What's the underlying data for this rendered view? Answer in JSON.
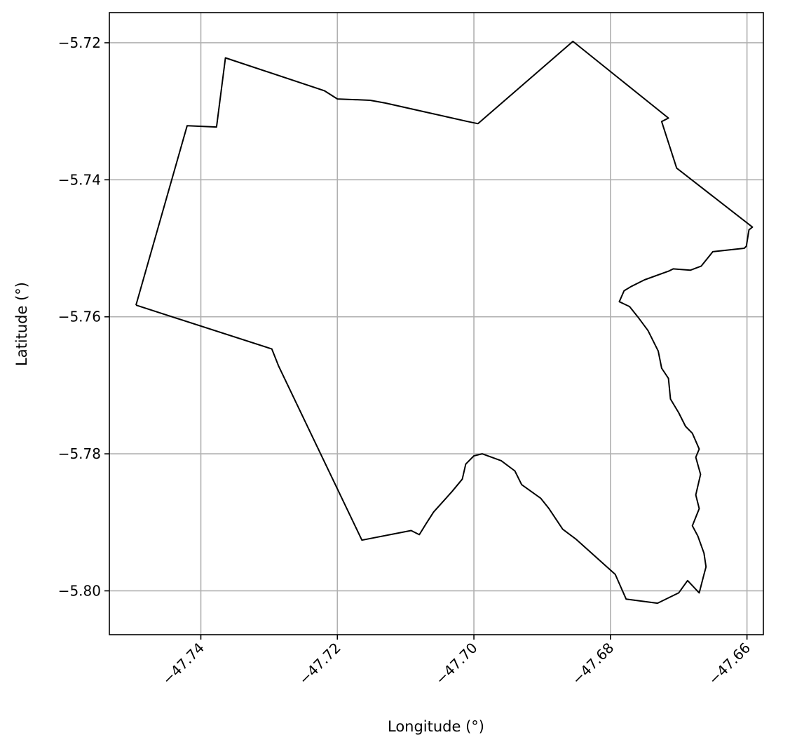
{
  "chart_data": {
    "type": "line",
    "title": "",
    "xlabel": "Longitude (°)",
    "ylabel": "Latitude (°)",
    "xlim": [
      -47.7534,
      -47.6576
    ],
    "ylim": [
      -5.8064,
      -5.7156
    ],
    "xticks": [
      -47.74,
      -47.72,
      -47.7,
      -47.68,
      -47.66
    ],
    "yticks": [
      -5.72,
      -5.74,
      -5.76,
      -5.78,
      -5.8
    ],
    "xtick_labels": [
      "−47.74",
      "−47.72",
      "−47.70",
      "−47.68",
      "−47.66"
    ],
    "ytick_labels": [
      "−5.72",
      "−5.74",
      "−5.76",
      "−5.78",
      "−5.80"
    ],
    "grid": true,
    "series": [
      {
        "color": "#000000",
        "x": [
          -47.7495,
          -47.742,
          -47.7377,
          -47.7364,
          -47.7219,
          -47.72,
          -47.7152,
          -47.713,
          -47.7067,
          -47.7009,
          -47.6994,
          -47.6855,
          -47.6715,
          -47.6725,
          -47.6703,
          -47.6592,
          -47.6597,
          -47.6601,
          -47.6604,
          -47.665,
          -47.6667,
          -47.6683,
          -47.6708,
          -47.6714,
          -47.675,
          -47.677,
          -47.678,
          -47.6787,
          -47.6772,
          -47.676,
          -47.6745,
          -47.673,
          -47.6725,
          -47.6715,
          -47.6712,
          -47.67,
          -47.669,
          -47.668,
          -47.667,
          -47.6675,
          -47.6668,
          -47.6675,
          -47.667,
          -47.668,
          -47.6672,
          -47.6663,
          -47.666,
          -47.6664,
          -47.667,
          -47.6687,
          -47.67,
          -47.6731,
          -47.6777,
          -47.6793,
          -47.685,
          -47.687,
          -47.689,
          -47.6902,
          -47.693,
          -47.694,
          -47.696,
          -47.6988,
          -47.7,
          -47.7012,
          -47.7017,
          -47.7032,
          -47.7059,
          -47.707,
          -47.708,
          -47.7092,
          -47.7164,
          -47.7286,
          -47.7296,
          -47.7495
        ],
        "y": [
          -5.7583,
          -5.7321,
          -5.7323,
          -5.7222,
          -5.727,
          -5.7282,
          -5.7284,
          -5.7288,
          -5.7302,
          -5.7315,
          -5.7318,
          -5.7198,
          -5.731,
          -5.7315,
          -5.7383,
          -5.7469,
          -5.7473,
          -5.7497,
          -5.75,
          -5.7505,
          -5.7526,
          -5.7532,
          -5.753,
          -5.7533,
          -5.7546,
          -5.7556,
          -5.7562,
          -5.7578,
          -5.7585,
          -5.76,
          -5.762,
          -5.765,
          -5.7675,
          -5.769,
          -5.772,
          -5.774,
          -5.776,
          -5.777,
          -5.7793,
          -5.7805,
          -5.783,
          -5.786,
          -5.788,
          -5.7905,
          -5.792,
          -5.7945,
          -5.7965,
          -5.798,
          -5.8003,
          -5.7985,
          -5.8003,
          -5.8018,
          -5.8012,
          -5.7976,
          -5.7925,
          -5.791,
          -5.788,
          -5.7865,
          -5.7845,
          -5.7825,
          -5.781,
          -5.78,
          -5.7803,
          -5.7815,
          -5.7837,
          -5.7855,
          -5.7885,
          -5.7902,
          -5.7918,
          -5.7912,
          -5.7926,
          -5.7672,
          -5.7647,
          -5.7583
        ]
      }
    ]
  }
}
